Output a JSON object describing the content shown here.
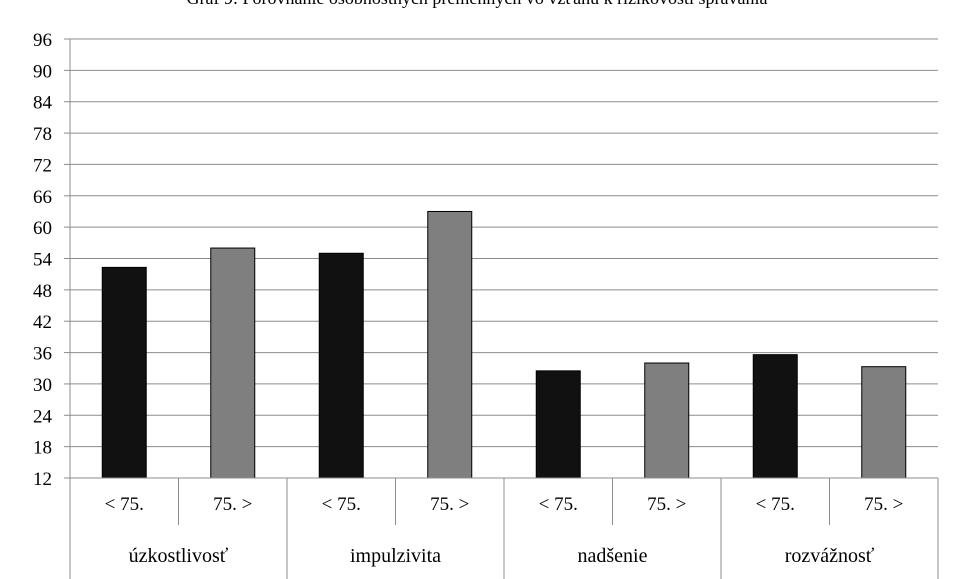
{
  "chart_data": {
    "type": "bar",
    "title": "Graf 9: Porovnanie osobnostných premenných vo vzťahu k rizikovosti správania",
    "xlabel": "",
    "ylabel": "",
    "ylim": [
      12,
      96
    ],
    "yticks": [
      12,
      18,
      24,
      30,
      36,
      42,
      48,
      54,
      60,
      66,
      72,
      78,
      84,
      90,
      96
    ],
    "grid": true,
    "groups": [
      "úzkostlivosť",
      "impulzivita",
      "nadšenie",
      "rozvážnosť"
    ],
    "subcategories": [
      "< 75.",
      "75. >"
    ],
    "series": [
      {
        "values": [
          52.3,
          55,
          32.5,
          35.6
        ],
        "color": "#111111"
      },
      {
        "values": [
          56,
          63,
          34,
          33.3
        ],
        "color": "#7f7f7f"
      }
    ]
  }
}
